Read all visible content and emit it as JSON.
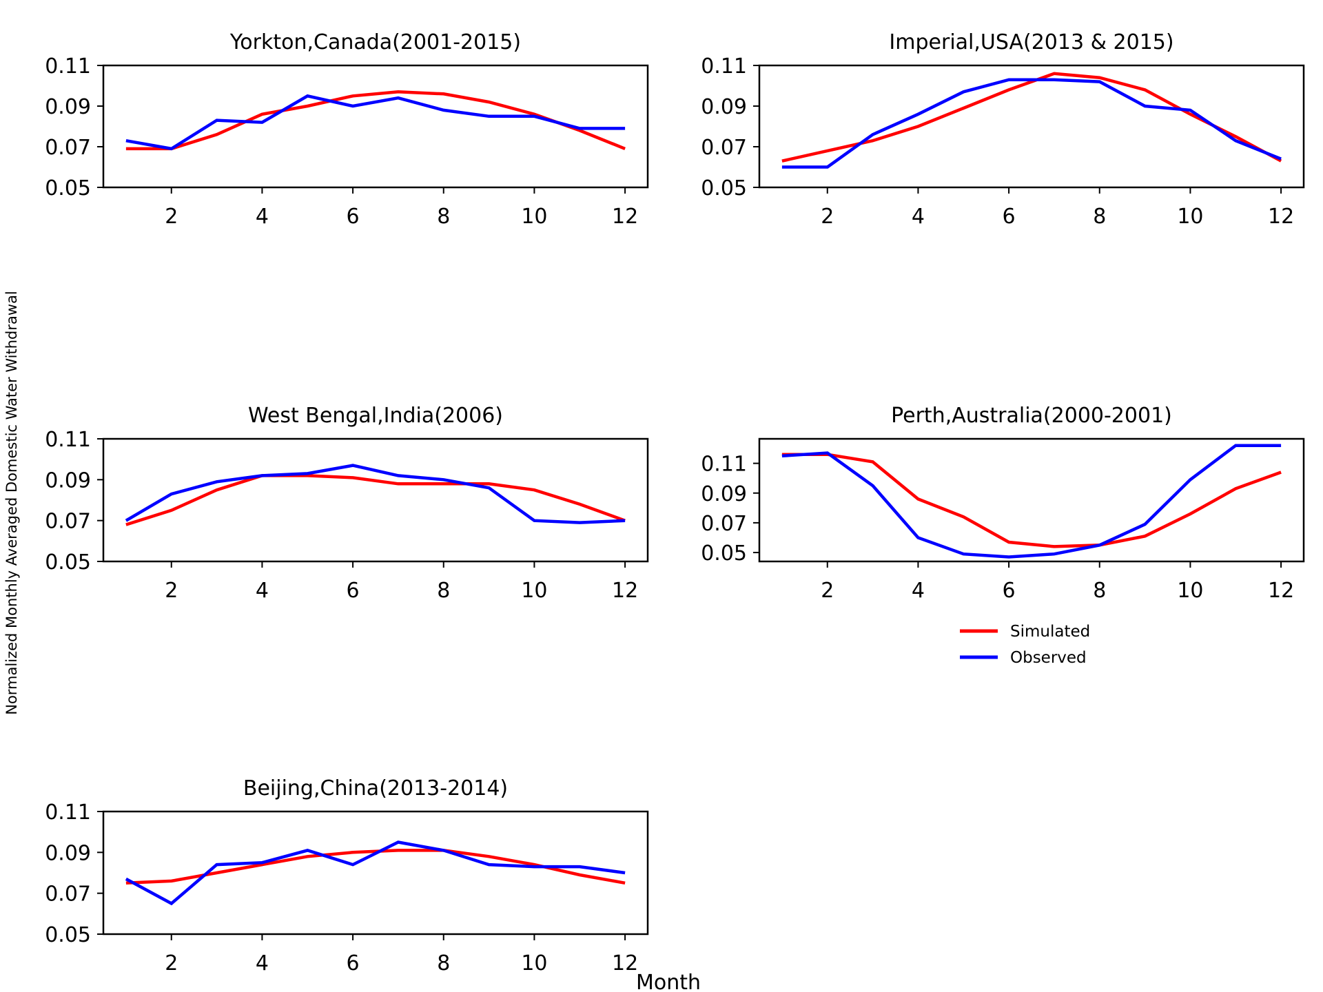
{
  "figure": {
    "ylabel": "Normalized Monthly Averaged Domestic Water Withdrawal",
    "xlabel": "Month",
    "legend": {
      "placement": "below-right-panel",
      "items": [
        {
          "label": "Simulated",
          "color": "#ff0000"
        },
        {
          "label": "Observed",
          "color": "#0000ff"
        }
      ]
    }
  },
  "chart_data": [
    {
      "type": "line",
      "title": "Yorkton,Canada(2001-2015)",
      "x": [
        1,
        2,
        3,
        4,
        5,
        6,
        7,
        8,
        9,
        10,
        11,
        12
      ],
      "xticks": [
        2,
        4,
        6,
        8,
        10,
        12
      ],
      "xlim": [
        0.5,
        12.5
      ],
      "ylim": [
        0.05,
        0.11
      ],
      "yticks": [
        0.05,
        0.07,
        0.09,
        0.11
      ],
      "ytick_labels": [
        "0.05",
        "0.07",
        "0.09",
        "0.11"
      ],
      "series": [
        {
          "name": "Simulated",
          "color": "#ff0000",
          "values": [
            0.069,
            0.069,
            0.076,
            0.086,
            0.09,
            0.095,
            0.097,
            0.096,
            0.092,
            0.086,
            0.078,
            0.069
          ]
        },
        {
          "name": "Observed",
          "color": "#0000ff",
          "values": [
            0.073,
            0.069,
            0.083,
            0.082,
            0.095,
            0.09,
            0.094,
            0.088,
            0.085,
            0.085,
            0.079,
            0.079
          ]
        }
      ]
    },
    {
      "type": "line",
      "title": "Imperial,USA(2013 & 2015)",
      "x": [
        1,
        2,
        3,
        4,
        5,
        6,
        7,
        8,
        9,
        10,
        11,
        12
      ],
      "xticks": [
        2,
        4,
        6,
        8,
        10,
        12
      ],
      "xlim": [
        0.5,
        12.5
      ],
      "ylim": [
        0.05,
        0.11
      ],
      "yticks": [
        0.05,
        0.07,
        0.09,
        0.11
      ],
      "ytick_labels": [
        "0.05",
        "0.07",
        "0.09",
        "0.11"
      ],
      "series": [
        {
          "name": "Simulated",
          "color": "#ff0000",
          "values": [
            0.063,
            0.068,
            0.073,
            0.08,
            0.089,
            0.098,
            0.106,
            0.104,
            0.098,
            0.086,
            0.075,
            0.063
          ]
        },
        {
          "name": "Observed",
          "color": "#0000ff",
          "values": [
            0.06,
            0.06,
            0.076,
            0.086,
            0.097,
            0.103,
            0.103,
            0.102,
            0.09,
            0.088,
            0.073,
            0.064
          ]
        }
      ]
    },
    {
      "type": "line",
      "title": "West Bengal,India(2006)",
      "x": [
        1,
        2,
        3,
        4,
        5,
        6,
        7,
        8,
        9,
        10,
        11,
        12
      ],
      "xticks": [
        2,
        4,
        6,
        8,
        10,
        12
      ],
      "xlim": [
        0.5,
        12.5
      ],
      "ylim": [
        0.05,
        0.11
      ],
      "yticks": [
        0.05,
        0.07,
        0.09,
        0.11
      ],
      "ytick_labels": [
        "0.05",
        "0.07",
        "0.09",
        "0.11"
      ],
      "series": [
        {
          "name": "Simulated",
          "color": "#ff0000",
          "values": [
            0.068,
            0.075,
            0.085,
            0.092,
            0.092,
            0.091,
            0.088,
            0.088,
            0.088,
            0.085,
            0.078,
            0.07
          ]
        },
        {
          "name": "Observed",
          "color": "#0000ff",
          "values": [
            0.07,
            0.083,
            0.089,
            0.092,
            0.093,
            0.097,
            0.092,
            0.09,
            0.086,
            0.07,
            0.069,
            0.07
          ]
        }
      ]
    },
    {
      "type": "line",
      "title": "Perth,Australia(2000-2001)",
      "x": [
        1,
        2,
        3,
        4,
        5,
        6,
        7,
        8,
        9,
        10,
        11,
        12
      ],
      "xticks": [
        2,
        4,
        6,
        8,
        10,
        12
      ],
      "xlim": [
        0.5,
        12.5
      ],
      "ylim": [
        0.044,
        0.1265
      ],
      "yticks": [
        0.05,
        0.07,
        0.09,
        0.11
      ],
      "ytick_labels": [
        "0.05",
        "0.07",
        "0.09",
        "0.11"
      ],
      "series": [
        {
          "name": "Simulated",
          "color": "#ff0000",
          "values": [
            0.116,
            0.116,
            0.111,
            0.086,
            0.074,
            0.057,
            0.054,
            0.055,
            0.061,
            0.076,
            0.093,
            0.104
          ]
        },
        {
          "name": "Observed",
          "color": "#0000ff",
          "values": [
            0.115,
            0.117,
            0.095,
            0.06,
            0.049,
            0.047,
            0.049,
            0.055,
            0.069,
            0.099,
            0.122,
            0.122
          ]
        }
      ]
    },
    {
      "type": "line",
      "title": "Beijing,China(2013-2014)",
      "x": [
        1,
        2,
        3,
        4,
        5,
        6,
        7,
        8,
        9,
        10,
        11,
        12
      ],
      "xticks": [
        2,
        4,
        6,
        8,
        10,
        12
      ],
      "xlim": [
        0.5,
        12.5
      ],
      "ylim": [
        0.05,
        0.11
      ],
      "yticks": [
        0.05,
        0.07,
        0.09,
        0.11
      ],
      "ytick_labels": [
        "0.05",
        "0.07",
        "0.09",
        "0.11"
      ],
      "series": [
        {
          "name": "Simulated",
          "color": "#ff0000",
          "values": [
            0.075,
            0.076,
            0.08,
            0.084,
            0.088,
            0.09,
            0.091,
            0.091,
            0.088,
            0.084,
            0.079,
            0.075
          ]
        },
        {
          "name": "Observed",
          "color": "#0000ff",
          "values": [
            0.077,
            0.065,
            0.084,
            0.085,
            0.091,
            0.084,
            0.095,
            0.091,
            0.084,
            0.083,
            0.083,
            0.08
          ]
        }
      ]
    }
  ]
}
